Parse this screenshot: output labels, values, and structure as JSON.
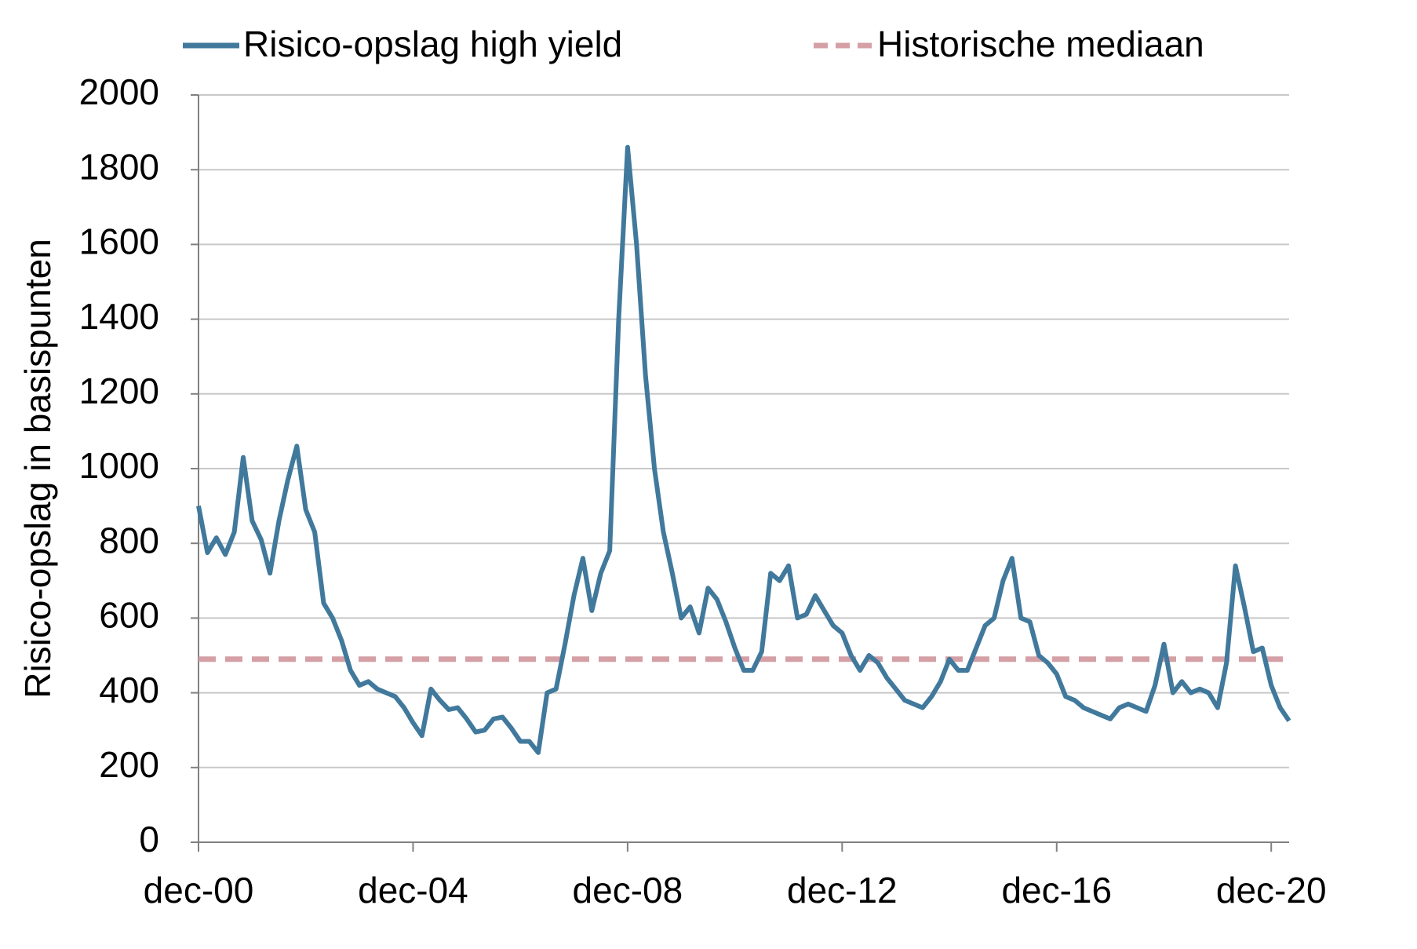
{
  "chart_data": {
    "type": "line",
    "ylabel": "Risico-opslag in basispunten",
    "categories": [
      "dec-00",
      null,
      null,
      null,
      null,
      null,
      null,
      null,
      null,
      null,
      null,
      null,
      null,
      null,
      null,
      null,
      null,
      null,
      null,
      null,
      null,
      null,
      null,
      null,
      "dec-04",
      null,
      null,
      null,
      null,
      null,
      null,
      null,
      null,
      null,
      null,
      null,
      null,
      null,
      null,
      null,
      null,
      null,
      null,
      null,
      null,
      null,
      null,
      null,
      "dec-08",
      null,
      null,
      null,
      null,
      null,
      null,
      null,
      null,
      null,
      null,
      null,
      null,
      null,
      null,
      null,
      null,
      null,
      null,
      null,
      null,
      null,
      null,
      null,
      "dec-12",
      null,
      null,
      null,
      null,
      null,
      null,
      null,
      null,
      null,
      null,
      null,
      null,
      null,
      null,
      null,
      null,
      null,
      null,
      null,
      null,
      null,
      null,
      null,
      "dec-16",
      null,
      null,
      null,
      null,
      null,
      null,
      null,
      null,
      null,
      null,
      null,
      null,
      null,
      null,
      null,
      null,
      null,
      null,
      null,
      null,
      null,
      null,
      null,
      "dec-20",
      null,
      null
    ],
    "series": [
      {
        "name": "Risico-opslag high yield",
        "color": "#41799c",
        "values": [
          900,
          775,
          815,
          770,
          830,
          1030,
          860,
          810,
          720,
          860,
          970,
          1060,
          890,
          830,
          640,
          600,
          540,
          460,
          420,
          430,
          410,
          400,
          390,
          360,
          320,
          285,
          410,
          380,
          355,
          360,
          330,
          295,
          300,
          330,
          335,
          305,
          270,
          270,
          240,
          400,
          410,
          530,
          660,
          760,
          620,
          720,
          780,
          1400,
          1860,
          1600,
          1250,
          1000,
          830,
          720,
          600,
          630,
          560,
          680,
          650,
          590,
          520,
          460,
          460,
          510,
          720,
          700,
          740,
          600,
          610,
          660,
          620,
          580,
          560,
          500,
          460,
          500,
          480,
          440,
          410,
          380,
          370,
          360,
          390,
          430,
          490,
          460,
          460,
          520,
          580,
          600,
          700,
          760,
          600,
          590,
          500,
          480,
          450,
          390,
          380,
          360,
          350,
          340,
          330,
          360,
          370,
          360,
          350,
          420,
          530,
          400,
          430,
          400,
          410,
          400,
          360,
          480,
          740,
          630,
          510,
          520,
          420,
          360,
          325
        ]
      }
    ],
    "median": {
      "name": "Historische mediaan",
      "color": "#d4a0a6",
      "value": 490
    },
    "ylim": [
      0,
      2000
    ],
    "yticks": [
      0,
      200,
      400,
      600,
      800,
      1000,
      1200,
      1400,
      1600,
      1800,
      2000
    ],
    "grid": true
  }
}
